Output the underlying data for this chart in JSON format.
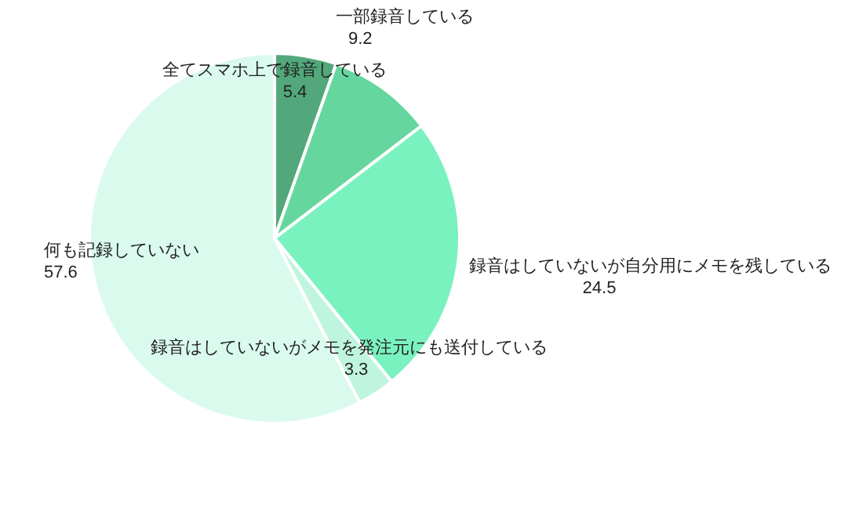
{
  "chart_data": {
    "type": "pie",
    "categories": [
      "全てスマホ上で録音している",
      "一部録音している",
      "録音はしていないが自分用にメモを残している",
      "録音はしていないがメモを発注元にも送付している",
      "何も記録していない"
    ],
    "values": [
      5.4,
      9.2,
      24.5,
      3.3,
      57.6
    ],
    "colors": [
      "#52a87a",
      "#66d69f",
      "#7af2bf",
      "#bff5de",
      "#dafaee"
    ],
    "data_labels": true
  }
}
